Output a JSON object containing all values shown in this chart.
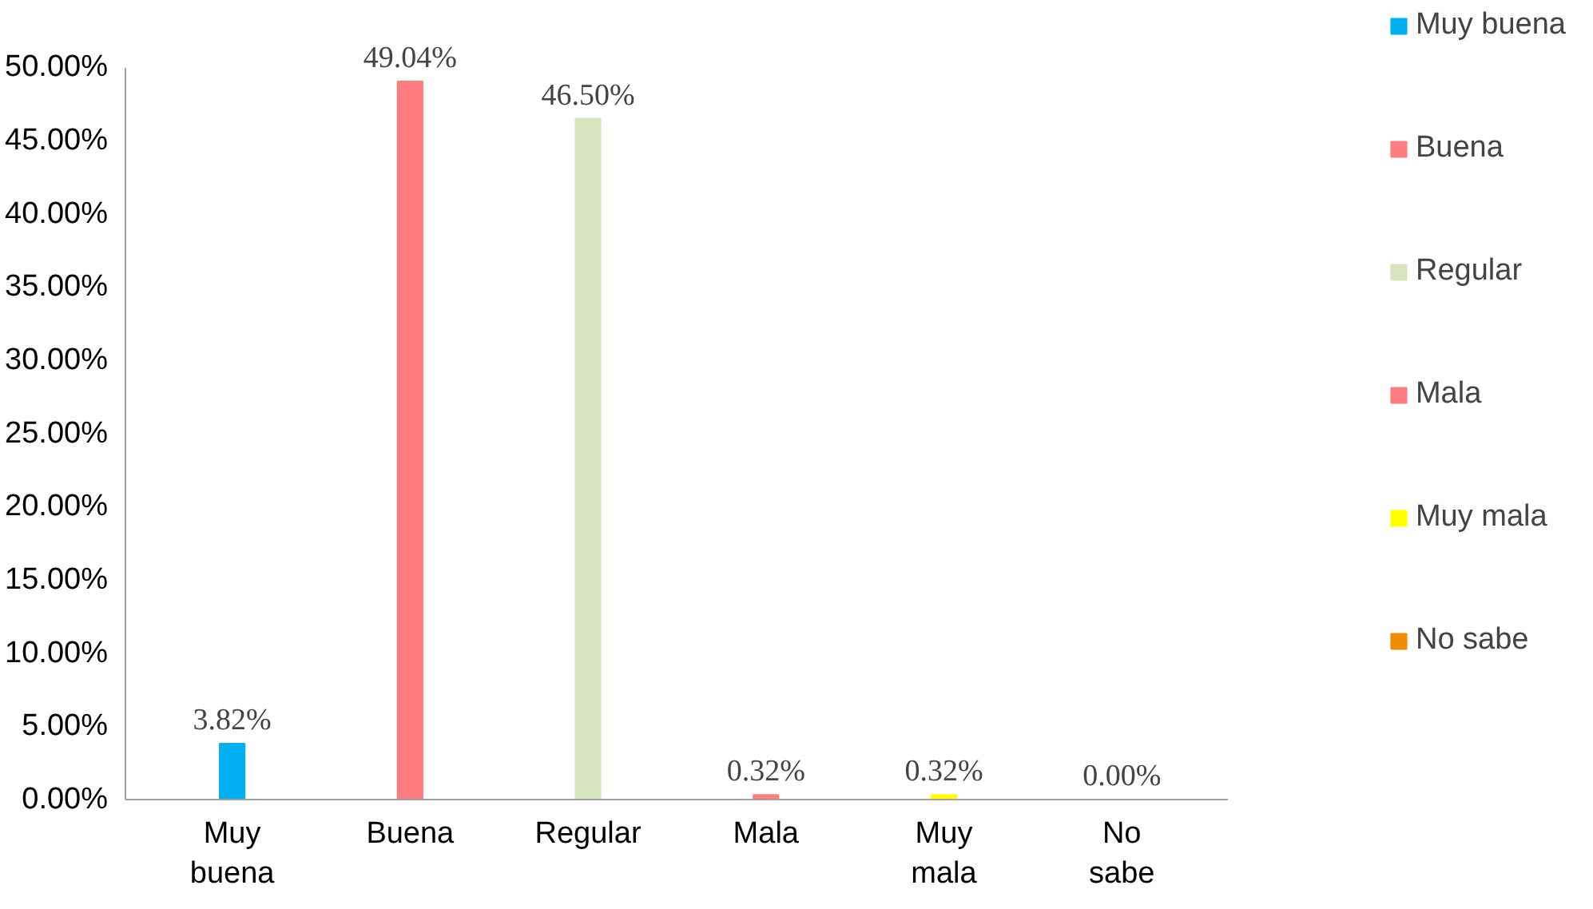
{
  "chart_data": {
    "type": "bar",
    "categories": [
      "Muy buena",
      "Buena",
      "Regular",
      "Mala",
      "Muy mala",
      "No sabe"
    ],
    "series": [
      {
        "name": "Muy buena",
        "color": "#00b0f0",
        "values": [
          3.82,
          null,
          null,
          null,
          null,
          null
        ],
        "value_labels": [
          "3.82%",
          null,
          null,
          null,
          null,
          null
        ]
      },
      {
        "name": "Buena",
        "color": "#ff7c80",
        "values": [
          null,
          49.04,
          null,
          null,
          null,
          null
        ],
        "value_labels": [
          null,
          "49.04%",
          null,
          null,
          null,
          null
        ]
      },
      {
        "name": "Regular",
        "color": "#d7e4bd",
        "values": [
          null,
          null,
          46.5,
          null,
          null,
          null
        ],
        "value_labels": [
          null,
          null,
          "46.50%",
          null,
          null,
          null
        ]
      },
      {
        "name": "Mala",
        "color": "#ff7c80",
        "values": [
          null,
          null,
          null,
          0.32,
          null,
          null
        ],
        "value_labels": [
          null,
          null,
          null,
          "0.32%",
          null,
          null
        ]
      },
      {
        "name": "Muy mala",
        "color": "#ffff00",
        "values": [
          null,
          null,
          null,
          null,
          0.32,
          null
        ],
        "value_labels": [
          null,
          null,
          null,
          null,
          "0.32%",
          null
        ]
      },
      {
        "name": "No sabe",
        "color": "#f08c00",
        "values": [
          null,
          null,
          null,
          null,
          null,
          0.0
        ],
        "value_labels": [
          null,
          null,
          null,
          null,
          null,
          "0.00%"
        ]
      }
    ],
    "ylim": [
      0,
      50
    ],
    "yticks": [
      {
        "value": 0,
        "label": "0.00%"
      },
      {
        "value": 5,
        "label": "5.00%"
      },
      {
        "value": 10,
        "label": "10.00%"
      },
      {
        "value": 15,
        "label": "15.00%"
      },
      {
        "value": 20,
        "label": "20.00%"
      },
      {
        "value": 25,
        "label": "25.00%"
      },
      {
        "value": 30,
        "label": "30.00%"
      },
      {
        "value": 35,
        "label": "35.00%"
      },
      {
        "value": 40,
        "label": "40.00%"
      },
      {
        "value": 45,
        "label": "45.00%"
      },
      {
        "value": 50,
        "label": "50.00%"
      }
    ],
    "grid": false,
    "legend": "right"
  }
}
